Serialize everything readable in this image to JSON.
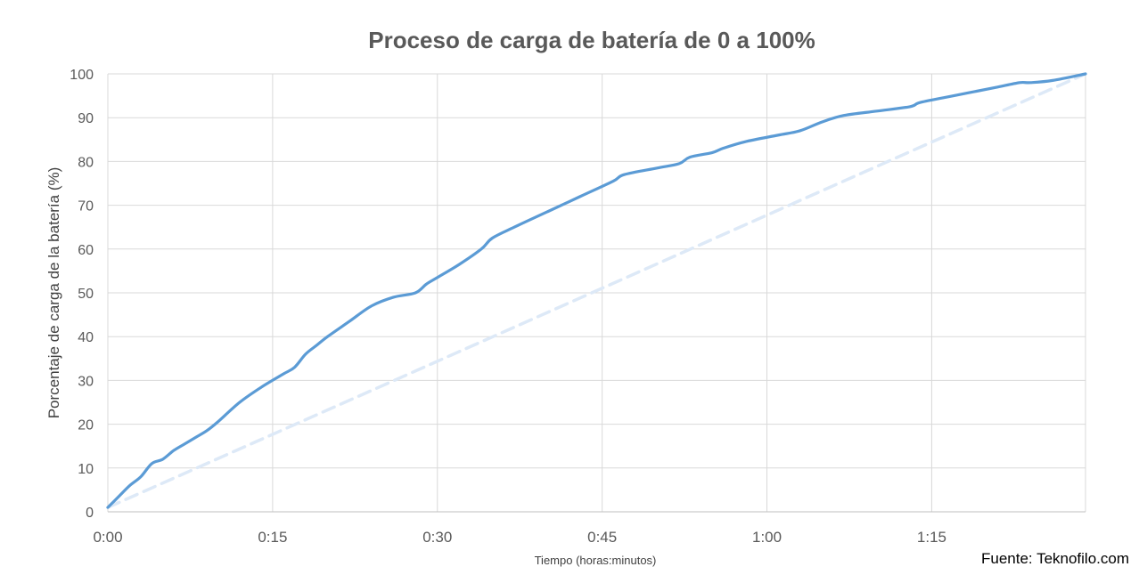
{
  "source_note": "Fuente: Teknofilo.com",
  "colors": {
    "main_line": "#5b9bd5",
    "reference_line": "#dde9f7",
    "grid": "#d9d9d9",
    "text": "#595959"
  },
  "chart_data": {
    "type": "line",
    "title": "Proceso de carga de batería de 0 a 100%",
    "xlabel": "Tiempo (horas:minutos)",
    "ylabel": "Porcentaje de carga de la batería (%)",
    "xlim": [
      0,
      89
    ],
    "ylim": [
      0,
      100
    ],
    "x_ticks": [
      0,
      15,
      30,
      45,
      60,
      75
    ],
    "x_tick_labels": [
      "0:00",
      "0:15",
      "0:30",
      "0:45",
      "1:00",
      "1:15"
    ],
    "y_ticks": [
      0,
      10,
      20,
      30,
      40,
      50,
      60,
      70,
      80,
      90,
      100
    ],
    "y_tick_labels": [
      "0",
      "10",
      "20",
      "30",
      "40",
      "50",
      "60",
      "70",
      "80",
      "90",
      "100"
    ],
    "grid": true,
    "legend": "none",
    "series": [
      {
        "style": "solid",
        "x": [
          0,
          1,
          2,
          3,
          4,
          5,
          6,
          7,
          8,
          9,
          10,
          12,
          14,
          16,
          17,
          18,
          19,
          20,
          22,
          24,
          26,
          28,
          29,
          30,
          32,
          34,
          35,
          37,
          40,
          43,
          46,
          47,
          50,
          52,
          53,
          55,
          56,
          58,
          61,
          63,
          65,
          67,
          70,
          73,
          74,
          77,
          79,
          81,
          83,
          84,
          86,
          89
        ],
        "y": [
          1,
          3.5,
          6,
          8,
          11,
          12,
          14,
          15.5,
          17,
          18.5,
          20.5,
          25,
          28.5,
          31.5,
          33,
          36,
          38,
          40,
          43.5,
          47,
          49,
          50,
          52,
          53.5,
          56.5,
          60,
          62.5,
          65,
          68.5,
          72,
          75.5,
          77,
          78.5,
          79.5,
          81,
          82,
          83,
          84.5,
          86,
          87,
          89,
          90.5,
          91.5,
          92.5,
          93.5,
          95,
          96,
          97,
          98,
          98,
          98.5,
          100
        ]
      },
      {
        "style": "dashed",
        "x": [
          0,
          89
        ],
        "y": [
          1,
          100
        ]
      }
    ]
  }
}
